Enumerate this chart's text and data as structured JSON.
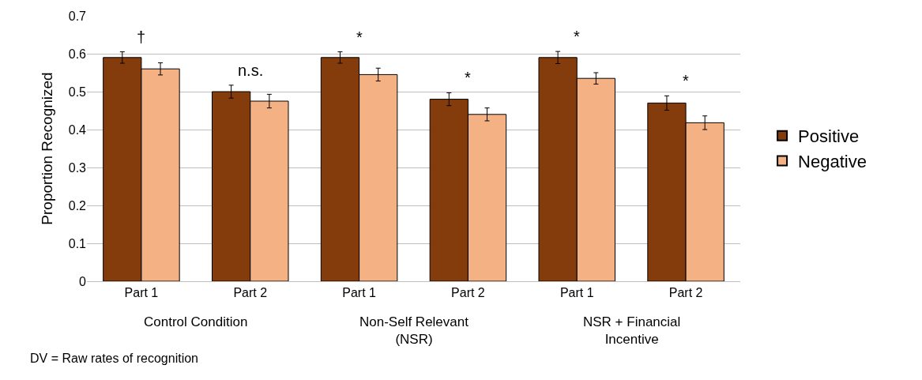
{
  "chart_data": {
    "type": "bar",
    "ylabel": "Proportion Recognized",
    "categories": [
      "Part 1",
      "Part 2",
      "Part 1",
      "Part 2",
      "Part 1",
      "Part 2"
    ],
    "series": [
      {
        "name": "Positive",
        "color": "#843c0c",
        "values": [
          0.59,
          0.5,
          0.59,
          0.48,
          0.59,
          0.47
        ],
        "errors": [
          0.015,
          0.017,
          0.015,
          0.017,
          0.016,
          0.019
        ]
      },
      {
        "name": "Negative",
        "color": "#f4b183",
        "values": [
          0.56,
          0.475,
          0.545,
          0.44,
          0.535,
          0.418
        ],
        "errors": [
          0.016,
          0.018,
          0.017,
          0.017,
          0.015,
          0.018
        ]
      }
    ],
    "ylim": [
      0,
      0.7
    ],
    "yticks": [
      0,
      0.1,
      0.2,
      0.3,
      0.4,
      0.5,
      0.6,
      0.7
    ],
    "grid": "y",
    "legend": "right",
    "annotations": [
      "†",
      "n.s.",
      "*",
      "*",
      "*",
      "*",
      "Control Condition",
      "Non-Self Relevant\n(NSR)",
      "NSR + Financial\nIncentive",
      "DV = Raw rates of recognition"
    ]
  }
}
